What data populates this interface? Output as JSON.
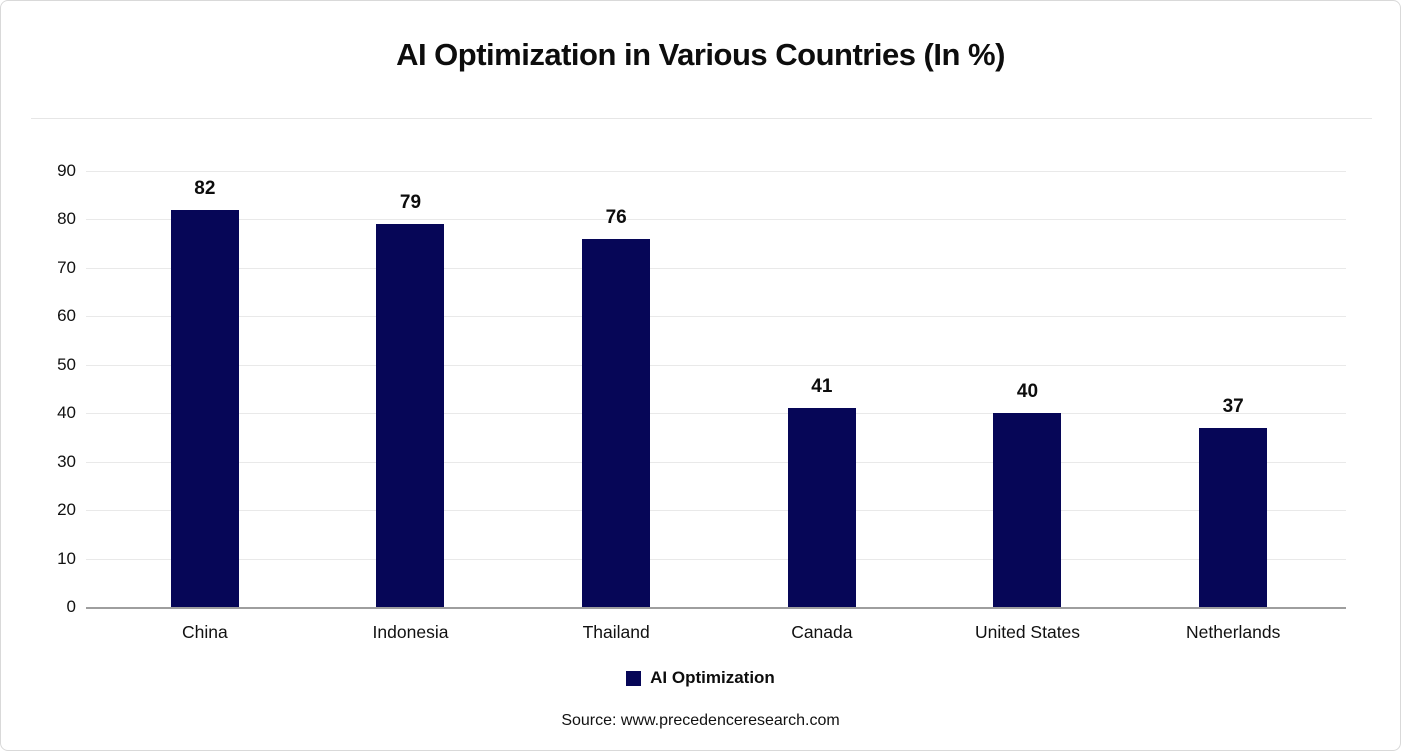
{
  "chart_data": {
    "type": "bar",
    "title": "AI Optimization in Various Countries (In %)",
    "categories": [
      "China",
      "Indonesia",
      "Thailand",
      "Canada",
      "United States",
      "Netherlands"
    ],
    "values": [
      82,
      79,
      76,
      41,
      40,
      37
    ],
    "xlabel": "",
    "ylabel": "",
    "ylim": [
      0,
      90
    ],
    "ytick_step": 10,
    "grid": true,
    "bar_color": "#060657",
    "legend": {
      "label": "AI Optimization",
      "position": "bottom"
    },
    "source": "Source: www.precedenceresearch.com"
  }
}
